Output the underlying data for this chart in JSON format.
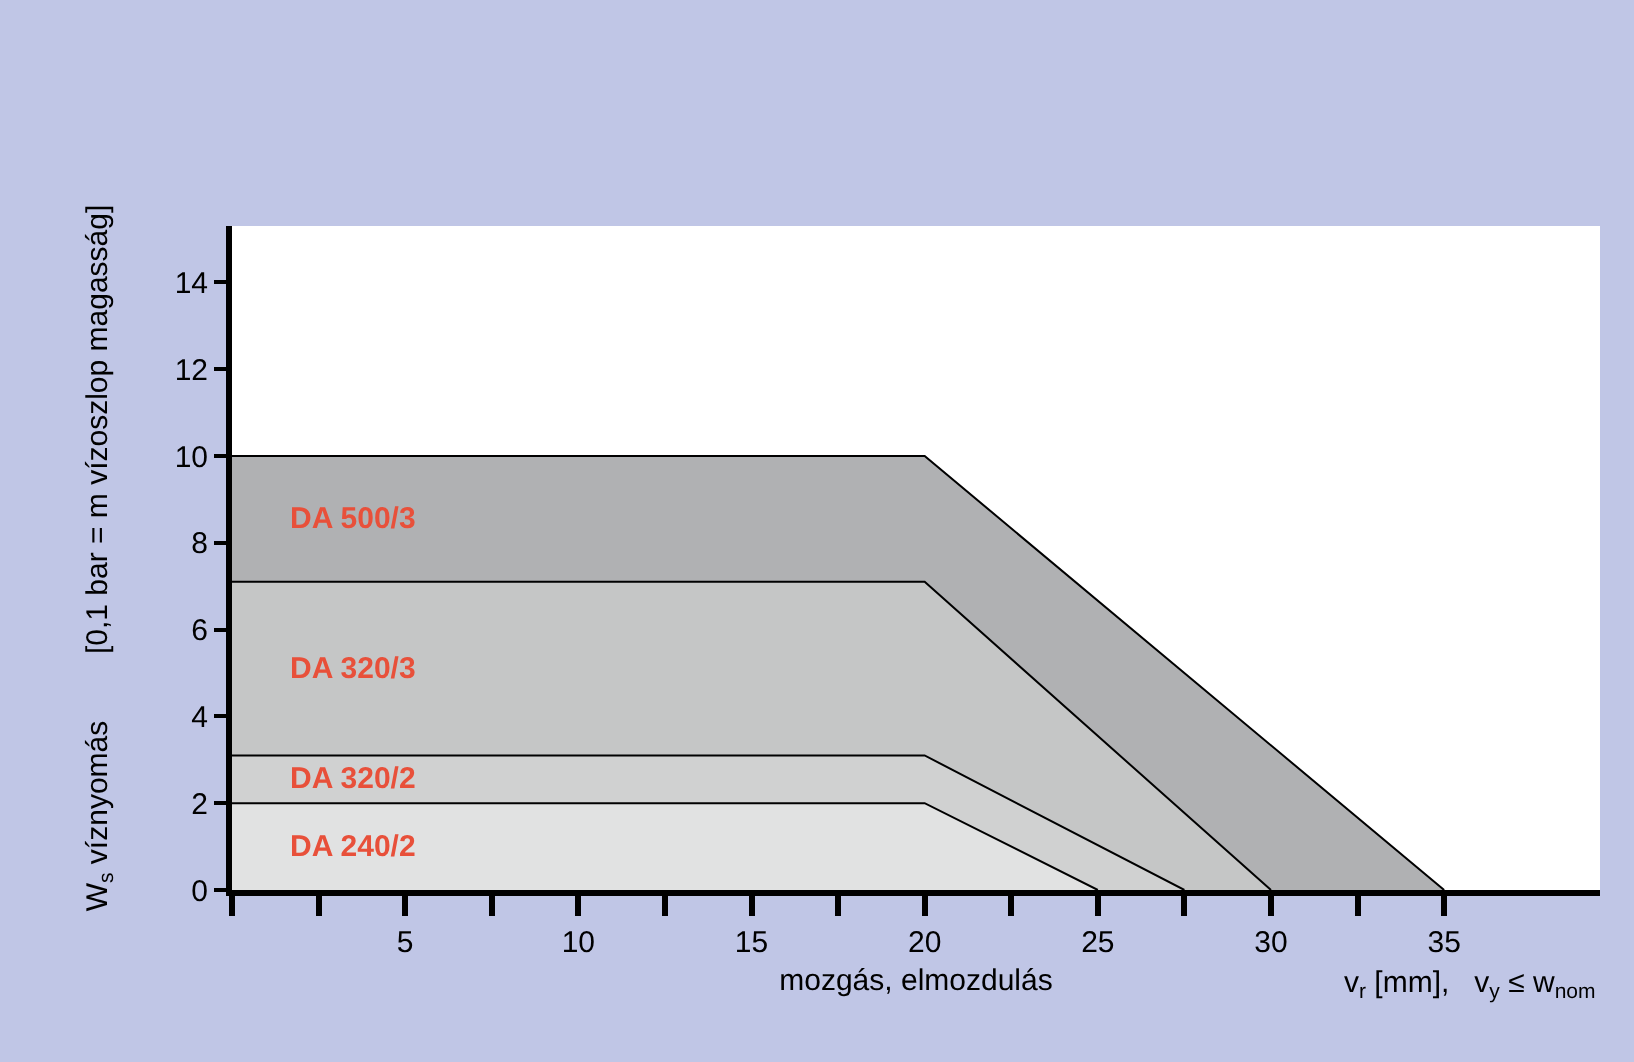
{
  "chart_data": {
    "type": "area",
    "xlabel": "mozgás, elmozdulás",
    "ylabel": "W$_{s}$ víznyomás        [0,1 bar = m vízoszlop magasság]",
    "annotations": [
      "v$_{r}$ [mm],   v$_{y}$ ≤ w$_{nom}$"
    ],
    "series": [
      {
        "name": "DA 500/3",
        "color": "#b0b1b3",
        "x": [
          0,
          20,
          35
        ],
        "values": [
          10,
          10,
          0
        ]
      },
      {
        "name": "DA 320/3",
        "color": "#c5c6c6",
        "x": [
          0,
          20,
          30
        ],
        "values": [
          7.1,
          7.1,
          0
        ]
      },
      {
        "name": "DA 320/2",
        "color": "#d0d1d1",
        "x": [
          0,
          20,
          27.5
        ],
        "values": [
          3.1,
          3.1,
          0
        ]
      },
      {
        "name": "DA 240/2",
        "color": "#e1e2e2",
        "x": [
          0,
          20,
          25
        ],
        "values": [
          2,
          2,
          0
        ]
      }
    ],
    "xlim": [
      0,
      39.5
    ],
    "ylim": [
      0,
      15.3
    ],
    "xticks": [
      {
        "value": 0,
        "label": null
      },
      {
        "value": 2.5,
        "label": null
      },
      5,
      {
        "value": 7.5,
        "label": null
      },
      10,
      {
        "value": 12.5,
        "label": null
      },
      15,
      {
        "value": 17.5,
        "label": null
      },
      20,
      {
        "value": 22.5,
        "label": null
      },
      25,
      {
        "value": 27.5,
        "label": null
      },
      30,
      {
        "value": 32.5,
        "label": null
      },
      35
    ],
    "yticks": [
      0,
      2,
      4,
      6,
      8,
      10,
      12,
      14
    ],
    "legend": false
  }
}
